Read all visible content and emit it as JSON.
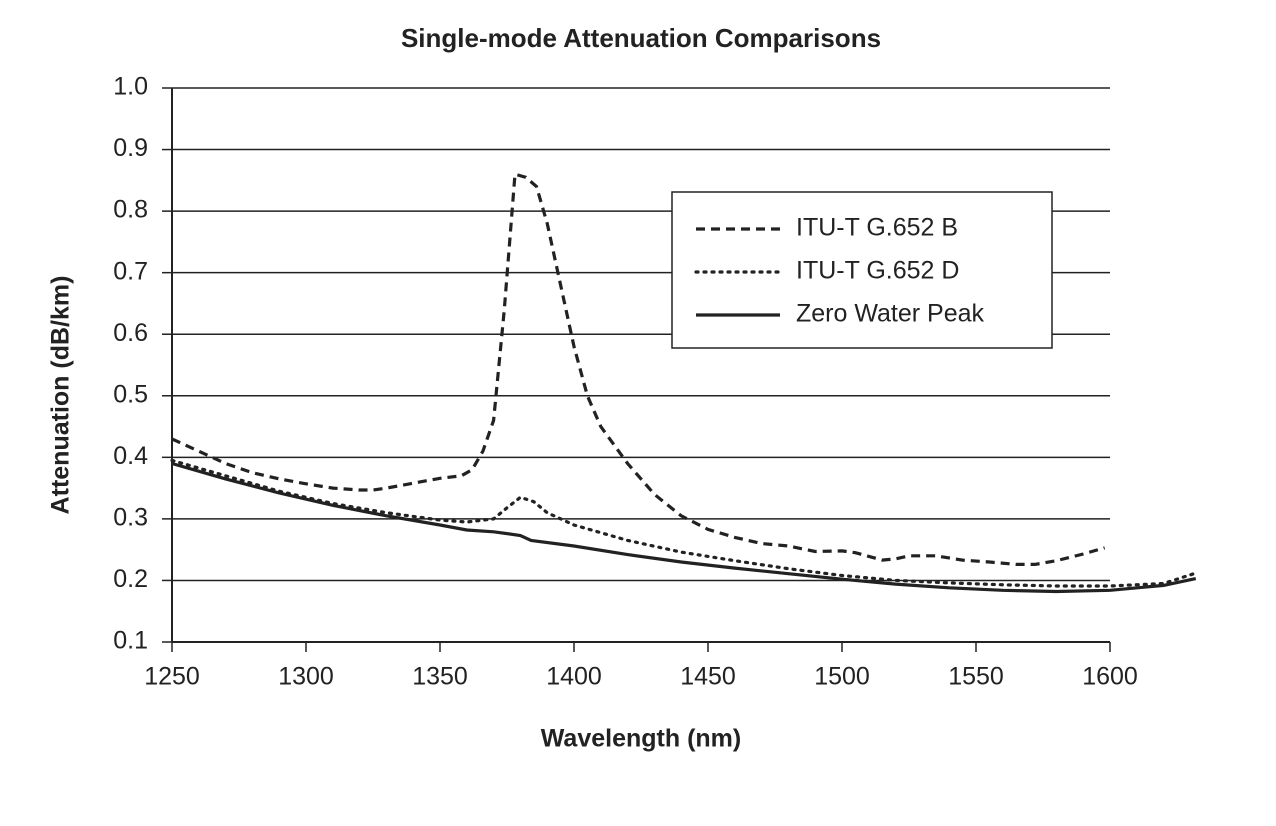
{
  "chart_data": {
    "type": "line",
    "title": "Single-mode Attenuation Comparisons",
    "x_label": "Wavelength (nm)",
    "y_label": "Attenuation (dB/km)",
    "xlim": [
      1250,
      1600
    ],
    "xticks": [
      1250,
      1300,
      1350,
      1400,
      1450,
      1500,
      1550,
      1600
    ],
    "ylim": [
      0.1,
      1
    ],
    "yticks": [
      0.1,
      0.2,
      0.3,
      0.4,
      0.5,
      0.6,
      0.7,
      0.8,
      0.9,
      {
        "value": 1,
        "label": "1.0"
      }
    ],
    "grid": true,
    "legend": "upper right",
    "series": [
      {
        "name": "ITU-T G.652 B",
        "color": "#222222",
        "dash": "dashed",
        "x": [
          1250,
          1260,
          1270,
          1280,
          1290,
          1300,
          1310,
          1320,
          1325,
          1330,
          1340,
          1350,
          1358,
          1362,
          1366,
          1370,
          1374,
          1378,
          1382,
          1386,
          1390,
          1395,
          1400,
          1405,
          1410,
          1420,
          1430,
          1440,
          1450,
          1460,
          1470,
          1480,
          1490,
          1500,
          1505,
          1515,
          1520,
          1525,
          1535,
          1545,
          1555,
          1565,
          1572,
          1580,
          1590,
          1598
        ],
        "values": [
          0.43,
          0.41,
          0.39,
          0.375,
          0.365,
          0.357,
          0.35,
          0.347,
          0.347,
          0.35,
          0.358,
          0.366,
          0.37,
          0.38,
          0.41,
          0.46,
          0.64,
          0.86,
          0.855,
          0.84,
          0.78,
          0.68,
          0.58,
          0.5,
          0.45,
          0.39,
          0.34,
          0.305,
          0.283,
          0.27,
          0.26,
          0.256,
          0.247,
          0.248,
          0.245,
          0.233,
          0.235,
          0.24,
          0.24,
          0.233,
          0.23,
          0.226,
          0.226,
          0.232,
          0.243,
          0.253
        ]
      },
      {
        "name": "ITU-T G.652 D",
        "color": "#222222",
        "dash": "dotted",
        "x": [
          1250,
          1270,
          1290,
          1310,
          1330,
          1350,
          1360,
          1370,
          1375,
          1380,
          1385,
          1390,
          1400,
          1420,
          1440,
          1460,
          1480,
          1500,
          1520,
          1540,
          1560,
          1580,
          1600,
          1620,
          1632
        ],
        "values": [
          0.395,
          0.37,
          0.345,
          0.325,
          0.31,
          0.298,
          0.295,
          0.3,
          0.318,
          0.335,
          0.328,
          0.31,
          0.29,
          0.265,
          0.246,
          0.232,
          0.219,
          0.208,
          0.2,
          0.196,
          0.193,
          0.191,
          0.191,
          0.195,
          0.212
        ]
      },
      {
        "name": "Zero Water Peak",
        "color": "#222222",
        "dash": "solid",
        "x": [
          1250,
          1270,
          1290,
          1310,
          1330,
          1350,
          1360,
          1370,
          1380,
          1384,
          1400,
          1420,
          1440,
          1460,
          1480,
          1500,
          1520,
          1540,
          1560,
          1580,
          1600,
          1620,
          1632
        ],
        "values": [
          0.39,
          0.365,
          0.342,
          0.322,
          0.305,
          0.29,
          0.282,
          0.279,
          0.273,
          0.265,
          0.256,
          0.242,
          0.23,
          0.22,
          0.211,
          0.202,
          0.194,
          0.188,
          0.184,
          0.182,
          0.184,
          0.192,
          0.203
        ]
      }
    ]
  }
}
